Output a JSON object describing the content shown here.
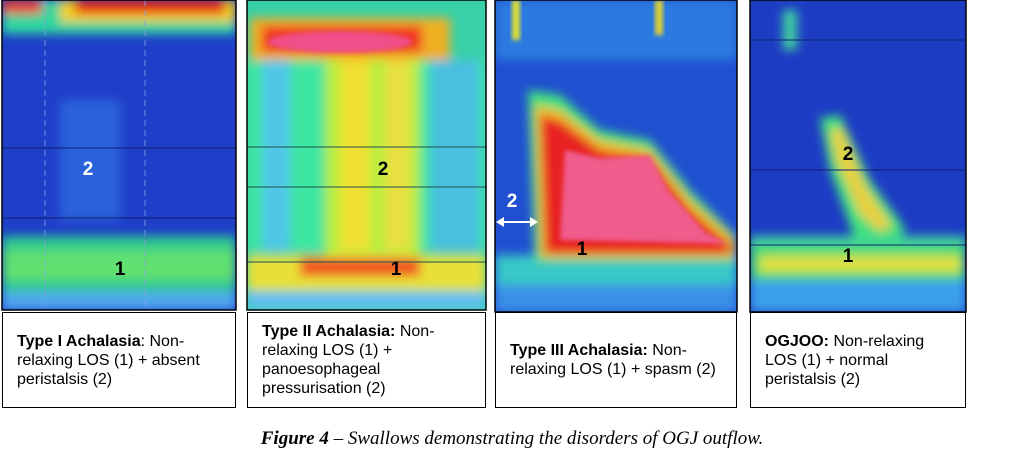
{
  "panels": [
    {
      "labels": [
        "2",
        "1"
      ],
      "caption_bold": "Type I Achalasia",
      "caption_text": ": Non-relaxing LOS (1) + absent peristalsis (2)"
    },
    {
      "labels": [
        "2",
        "1"
      ],
      "caption_bold": "Type II Achalasia:",
      "caption_text": " Non-relaxing LOS (1) + panoesophageal pressurisation (2)"
    },
    {
      "labels": [
        "2",
        "1"
      ],
      "caption_bold": "Type III Achalasia:",
      "caption_text": " Non-relaxing LOS (1) + spasm (2)"
    },
    {
      "labels": [
        "2",
        "1"
      ],
      "caption_bold": "OGJOO:",
      "caption_text": " Non-relaxing LOS (1) + normal peristalsis (2)"
    }
  ],
  "figure_caption": {
    "label": "Figure 4",
    "text": " – Swallows demonstrating the disorders of OGJ outflow."
  }
}
